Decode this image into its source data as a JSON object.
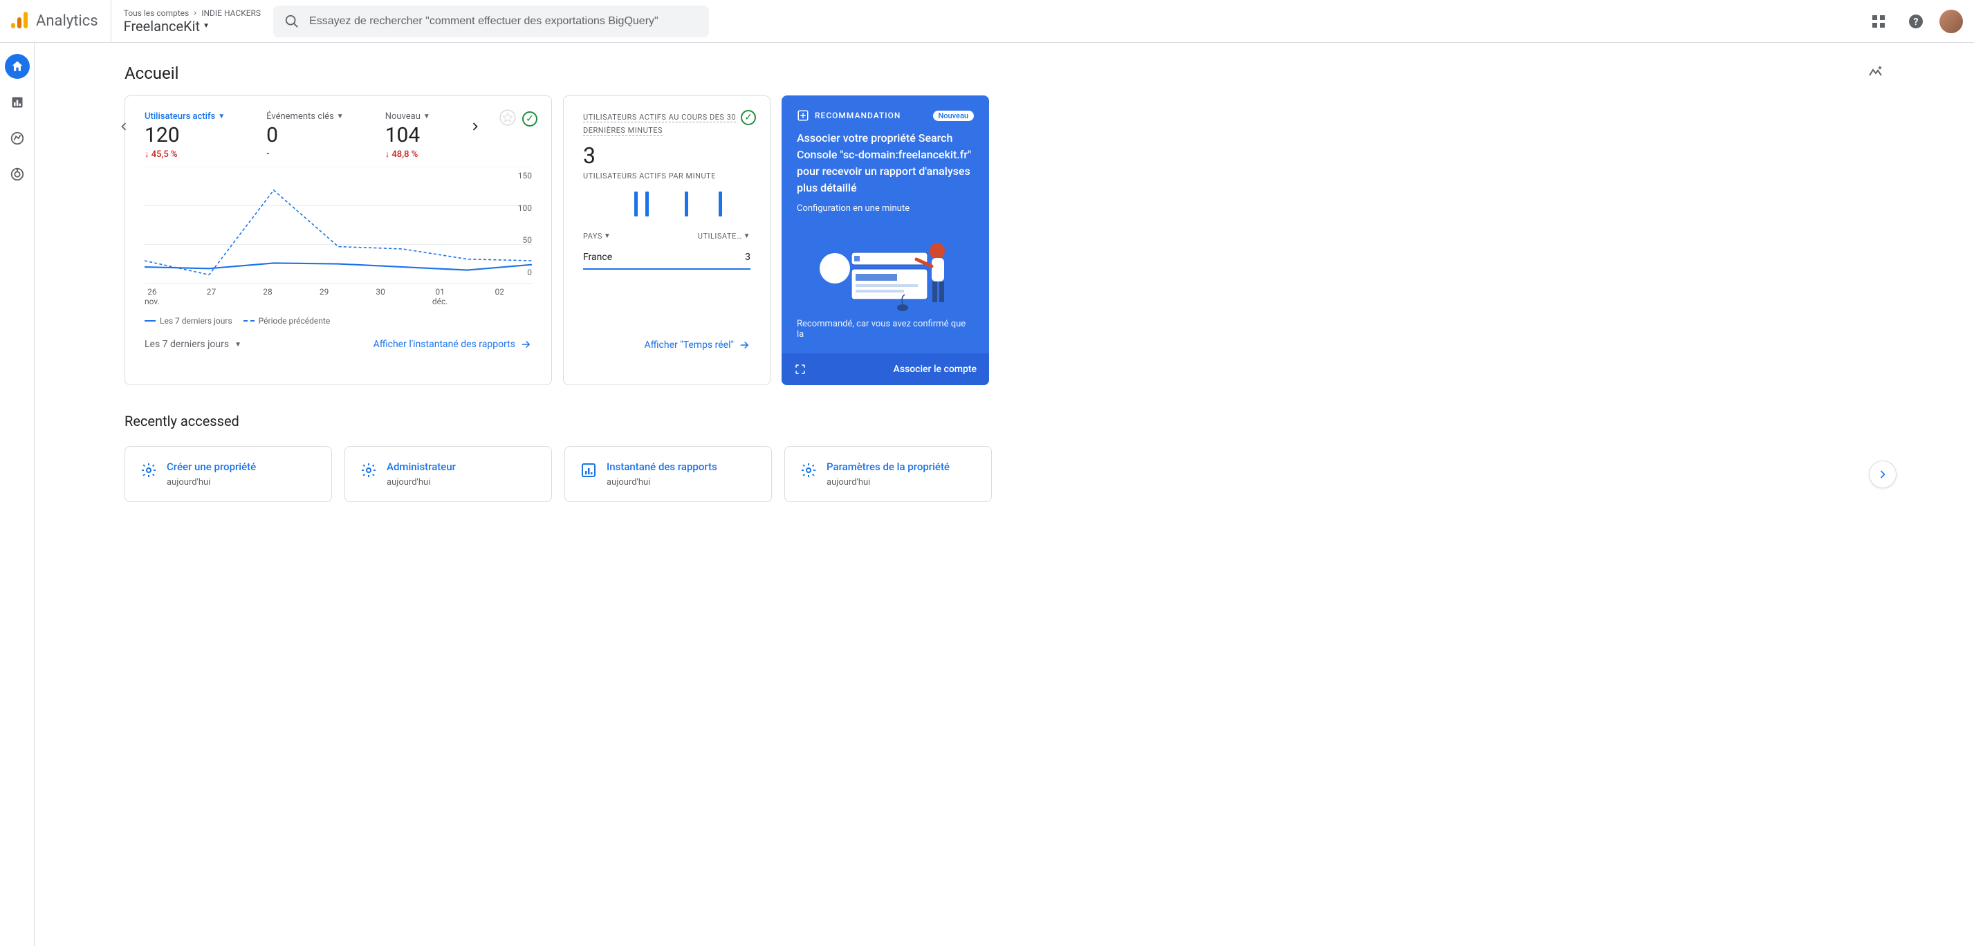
{
  "header": {
    "brand": "Analytics",
    "breadcrumb_all": "Tous les comptes",
    "breadcrumb_account": "INDIE HACKERS",
    "property": "FreelanceKit",
    "search_placeholder": "Essayez de rechercher \"comment effectuer des exportations BigQuery\""
  },
  "page": {
    "title": "Accueil",
    "recently_title": "Recently accessed"
  },
  "metrics": [
    {
      "label": "Utilisateurs actifs",
      "value": "120",
      "delta": "45,5 %",
      "direction": "down",
      "active": true
    },
    {
      "label": "Événements clés",
      "value": "0",
      "delta": "-",
      "direction": "none",
      "active": false
    },
    {
      "label": "Nouveau",
      "value": "104",
      "delta": "48,8 %",
      "direction": "down",
      "active": false
    }
  ],
  "chart": {
    "type": "line",
    "x_labels": [
      "26\nnov.",
      "27",
      "28",
      "29",
      "30",
      "01\ndéc.",
      "02"
    ],
    "y_ticks": [
      "150",
      "100",
      "50",
      "0"
    ],
    "ylim": [
      0,
      150
    ],
    "series": [
      {
        "name": "Les 7 derniers jours",
        "style": "solid",
        "color": "#1a73e8",
        "values": [
          22,
          20,
          27,
          26,
          22,
          18,
          25
        ]
      },
      {
        "name": "Période précédente",
        "style": "dashed",
        "color": "#1a73e8",
        "values": [
          30,
          12,
          120,
          48,
          45,
          32,
          30
        ]
      }
    ],
    "legend_solid": "Les 7 derniers jours",
    "legend_dashed": "Période précédente",
    "range_label": "Les 7 derniers jours",
    "link": "Afficher l'instantané des rapports"
  },
  "realtime": {
    "title": "UTILISATEURS ACTIFS AU COURS DES 30 DERNIÈRES MINUTES",
    "value": "3",
    "sub": "UTILISATEURS ACTIFS PAR MINUTE",
    "bars": [
      0,
      0,
      0,
      0,
      0,
      0,
      0,
      0,
      0,
      36,
      0,
      36,
      0,
      0,
      0,
      0,
      0,
      0,
      36,
      0,
      0,
      0,
      0,
      0,
      36,
      0,
      0,
      0,
      0,
      0
    ],
    "bar_color": "#1a73e8",
    "col_country": "PAYS",
    "col_users": "UTILISATE…",
    "row_country": "France",
    "row_value": "3",
    "link": "Afficher \"Temps réel\""
  },
  "rec": {
    "badge_label": "RECOMMANDATION",
    "new_badge": "Nouveau",
    "text": "Associer votre propriété Search Console \"sc-domain:freelancekit.fr\" pour recevoir un rapport d'analyses plus détaillé",
    "sub": "Configuration en une minute",
    "foot": "Recommandé, car vous avez confirmé que la",
    "action": "Associer le compte",
    "bg_color": "#3372e6"
  },
  "recent": [
    {
      "title": "Créer une propriété",
      "sub": "aujourd'hui",
      "icon": "gear"
    },
    {
      "title": "Administrateur",
      "sub": "aujourd'hui",
      "icon": "gear"
    },
    {
      "title": "Instantané des rapports",
      "sub": "aujourd'hui",
      "icon": "bar"
    },
    {
      "title": "Paramètres de la propriété",
      "sub": "aujourd'hui",
      "icon": "gear"
    }
  ]
}
